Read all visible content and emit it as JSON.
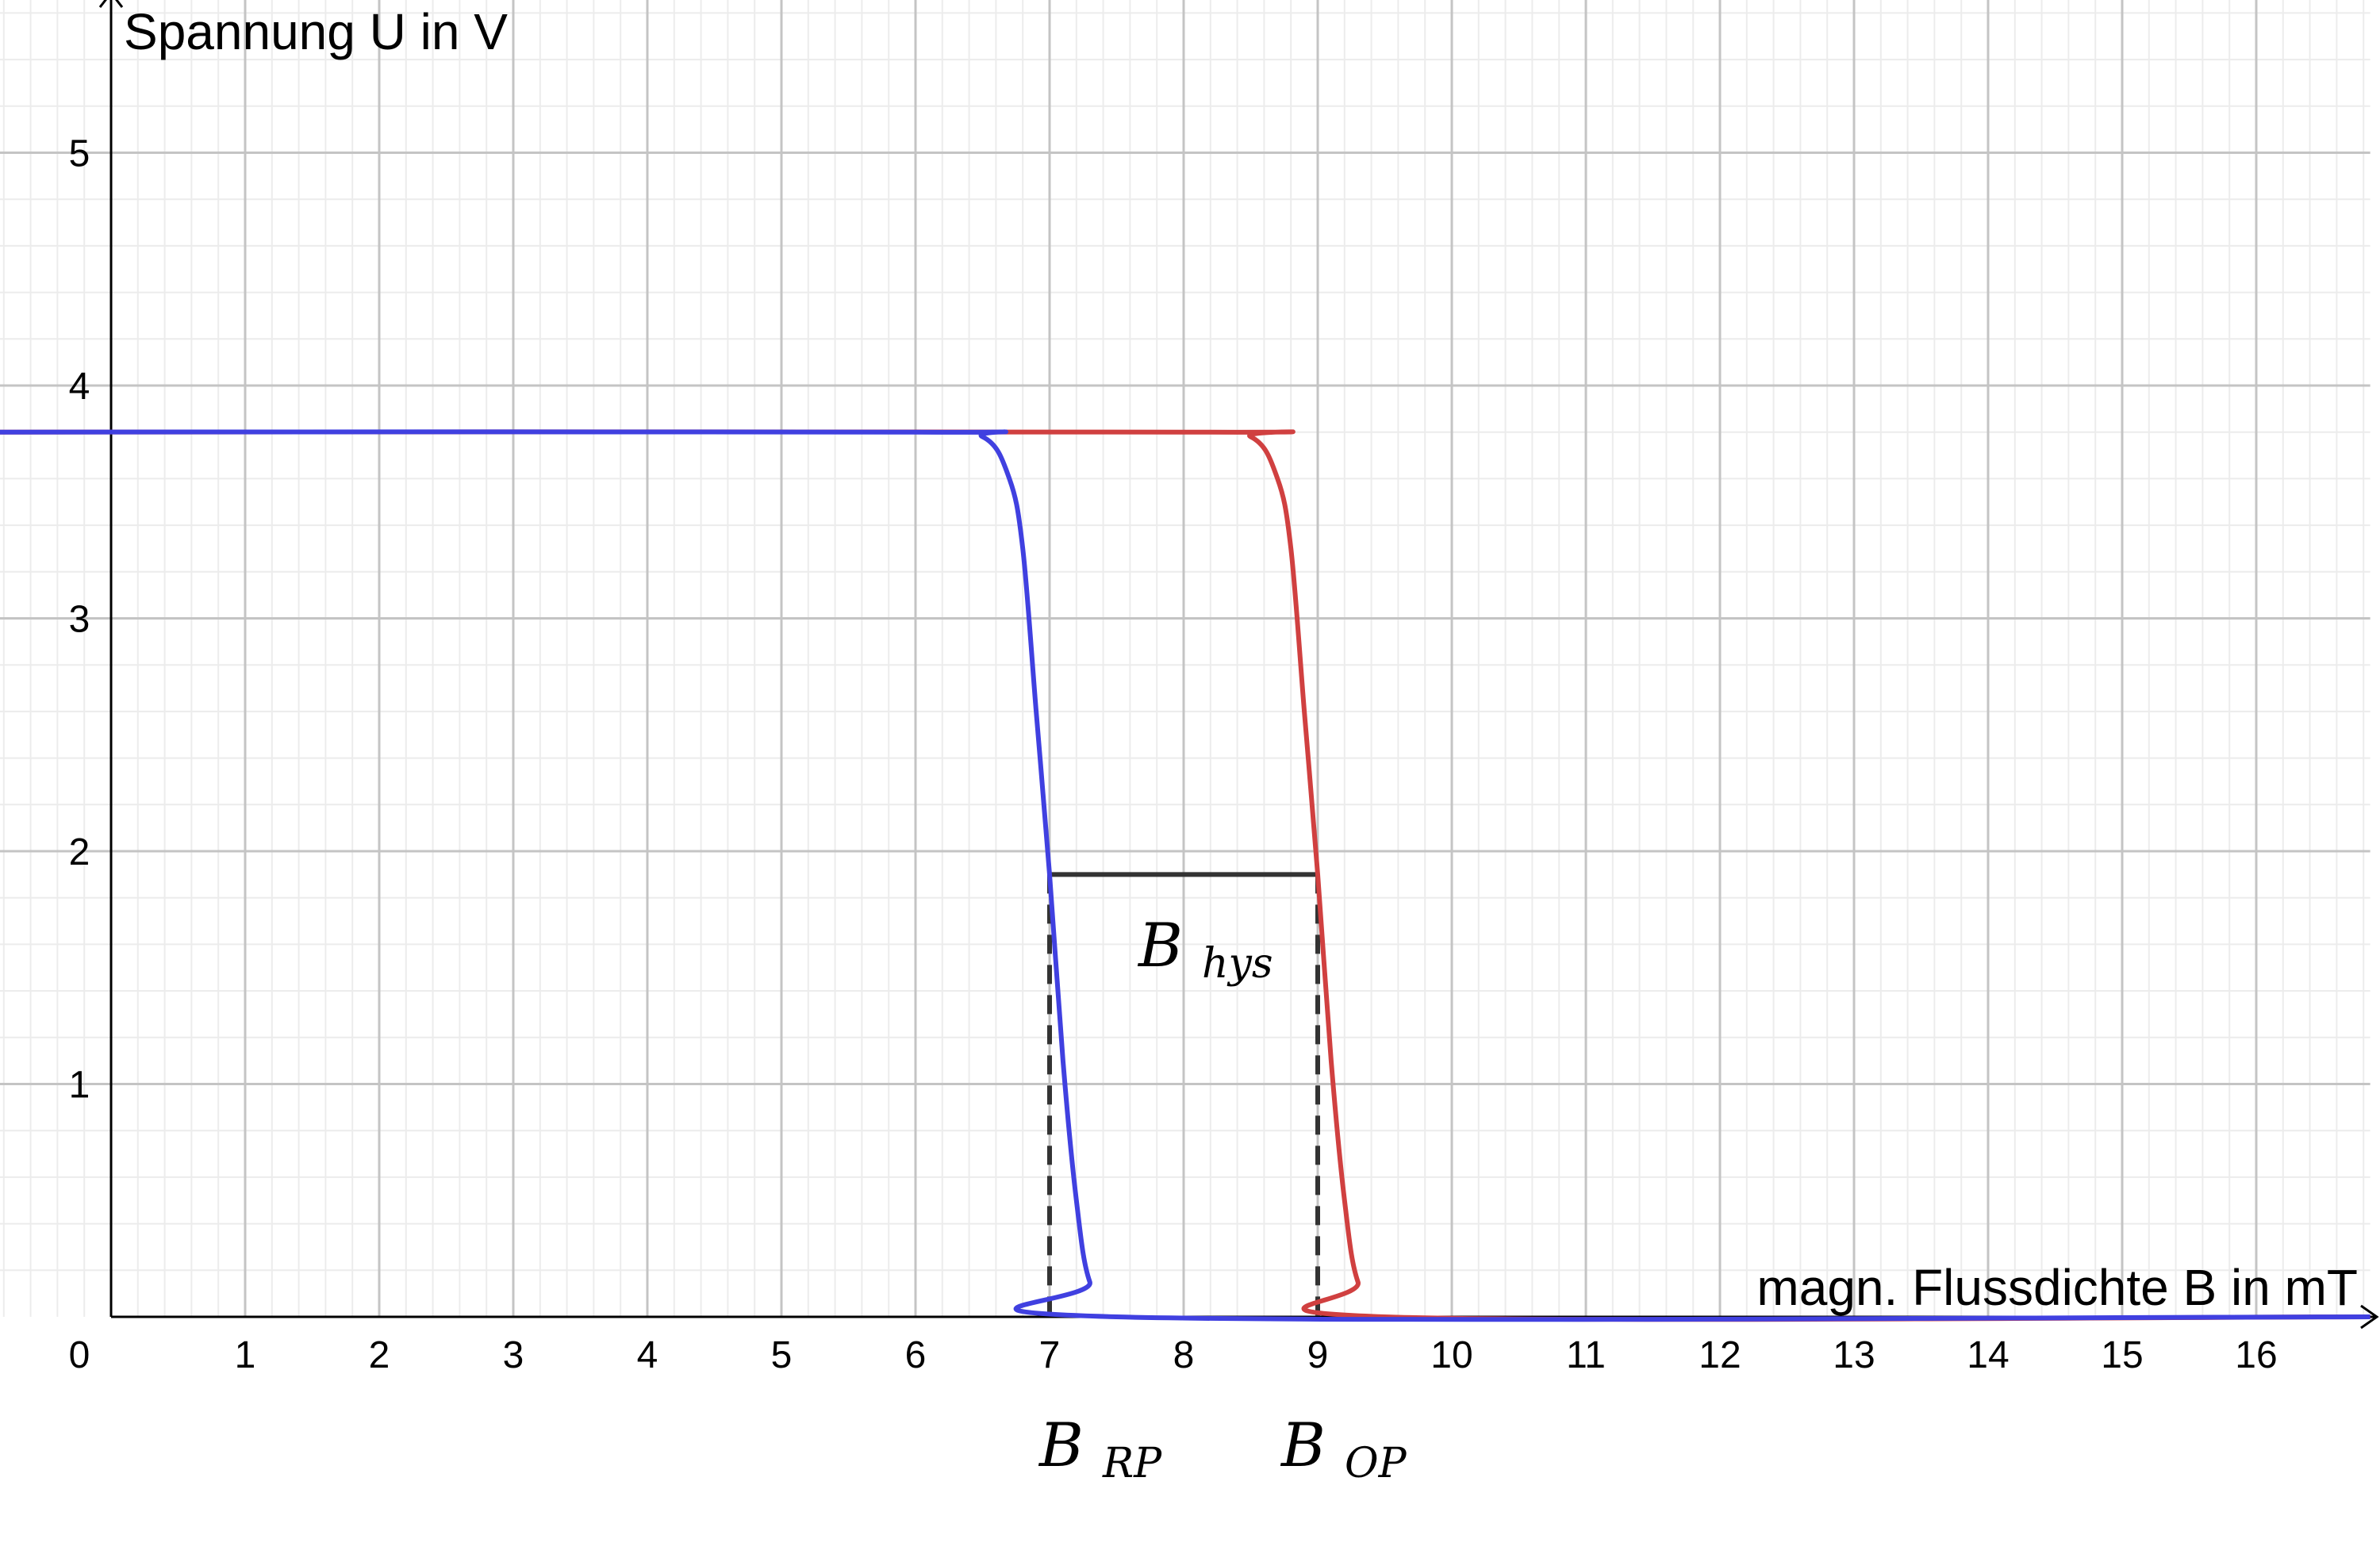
{
  "chart_data": {
    "type": "line",
    "title": "",
    "xlabel": "magn. Flussdichte B in mT",
    "ylabel": "Spannung U in V",
    "xlim": [
      -0.85,
      16.85
    ],
    "ylim": [
      0,
      5.7
    ],
    "grid": true,
    "x_ticks": [
      "0",
      "1",
      "2",
      "3",
      "4",
      "5",
      "6",
      "7",
      "8",
      "9",
      "10",
      "11",
      "12",
      "13",
      "14",
      "15",
      "16"
    ],
    "y_ticks": [
      "1",
      "2",
      "3",
      "4",
      "5"
    ],
    "series": [
      {
        "color": "#d04040",
        "x": [
          -0.85,
          8.0,
          8.5,
          8.7,
          8.8,
          8.9,
          9.0,
          9.1,
          9.2,
          9.3,
          9.5,
          16.85
        ],
        "y": [
          3.8,
          3.8,
          3.78,
          3.6,
          3.3,
          2.6,
          1.9,
          1.1,
          0.5,
          0.15,
          0.0,
          0.0
        ]
      },
      {
        "color": "#4040e0",
        "x": [
          -0.85,
          6.0,
          6.5,
          6.7,
          6.8,
          6.9,
          7.0,
          7.1,
          7.2,
          7.3,
          7.5,
          16.85
        ],
        "y": [
          3.8,
          3.8,
          3.78,
          3.6,
          3.3,
          2.6,
          1.9,
          1.1,
          0.5,
          0.15,
          0.0,
          0.0
        ]
      }
    ],
    "annotations": {
      "hys_y": 1.9,
      "rp_x": 7.0,
      "op_x": 9.0,
      "hys_label": {
        "base": "B",
        "sub": "hys"
      },
      "rp_label": {
        "base": "B",
        "sub": "RP"
      },
      "op_label": {
        "base": "B",
        "sub": "OP"
      }
    }
  }
}
